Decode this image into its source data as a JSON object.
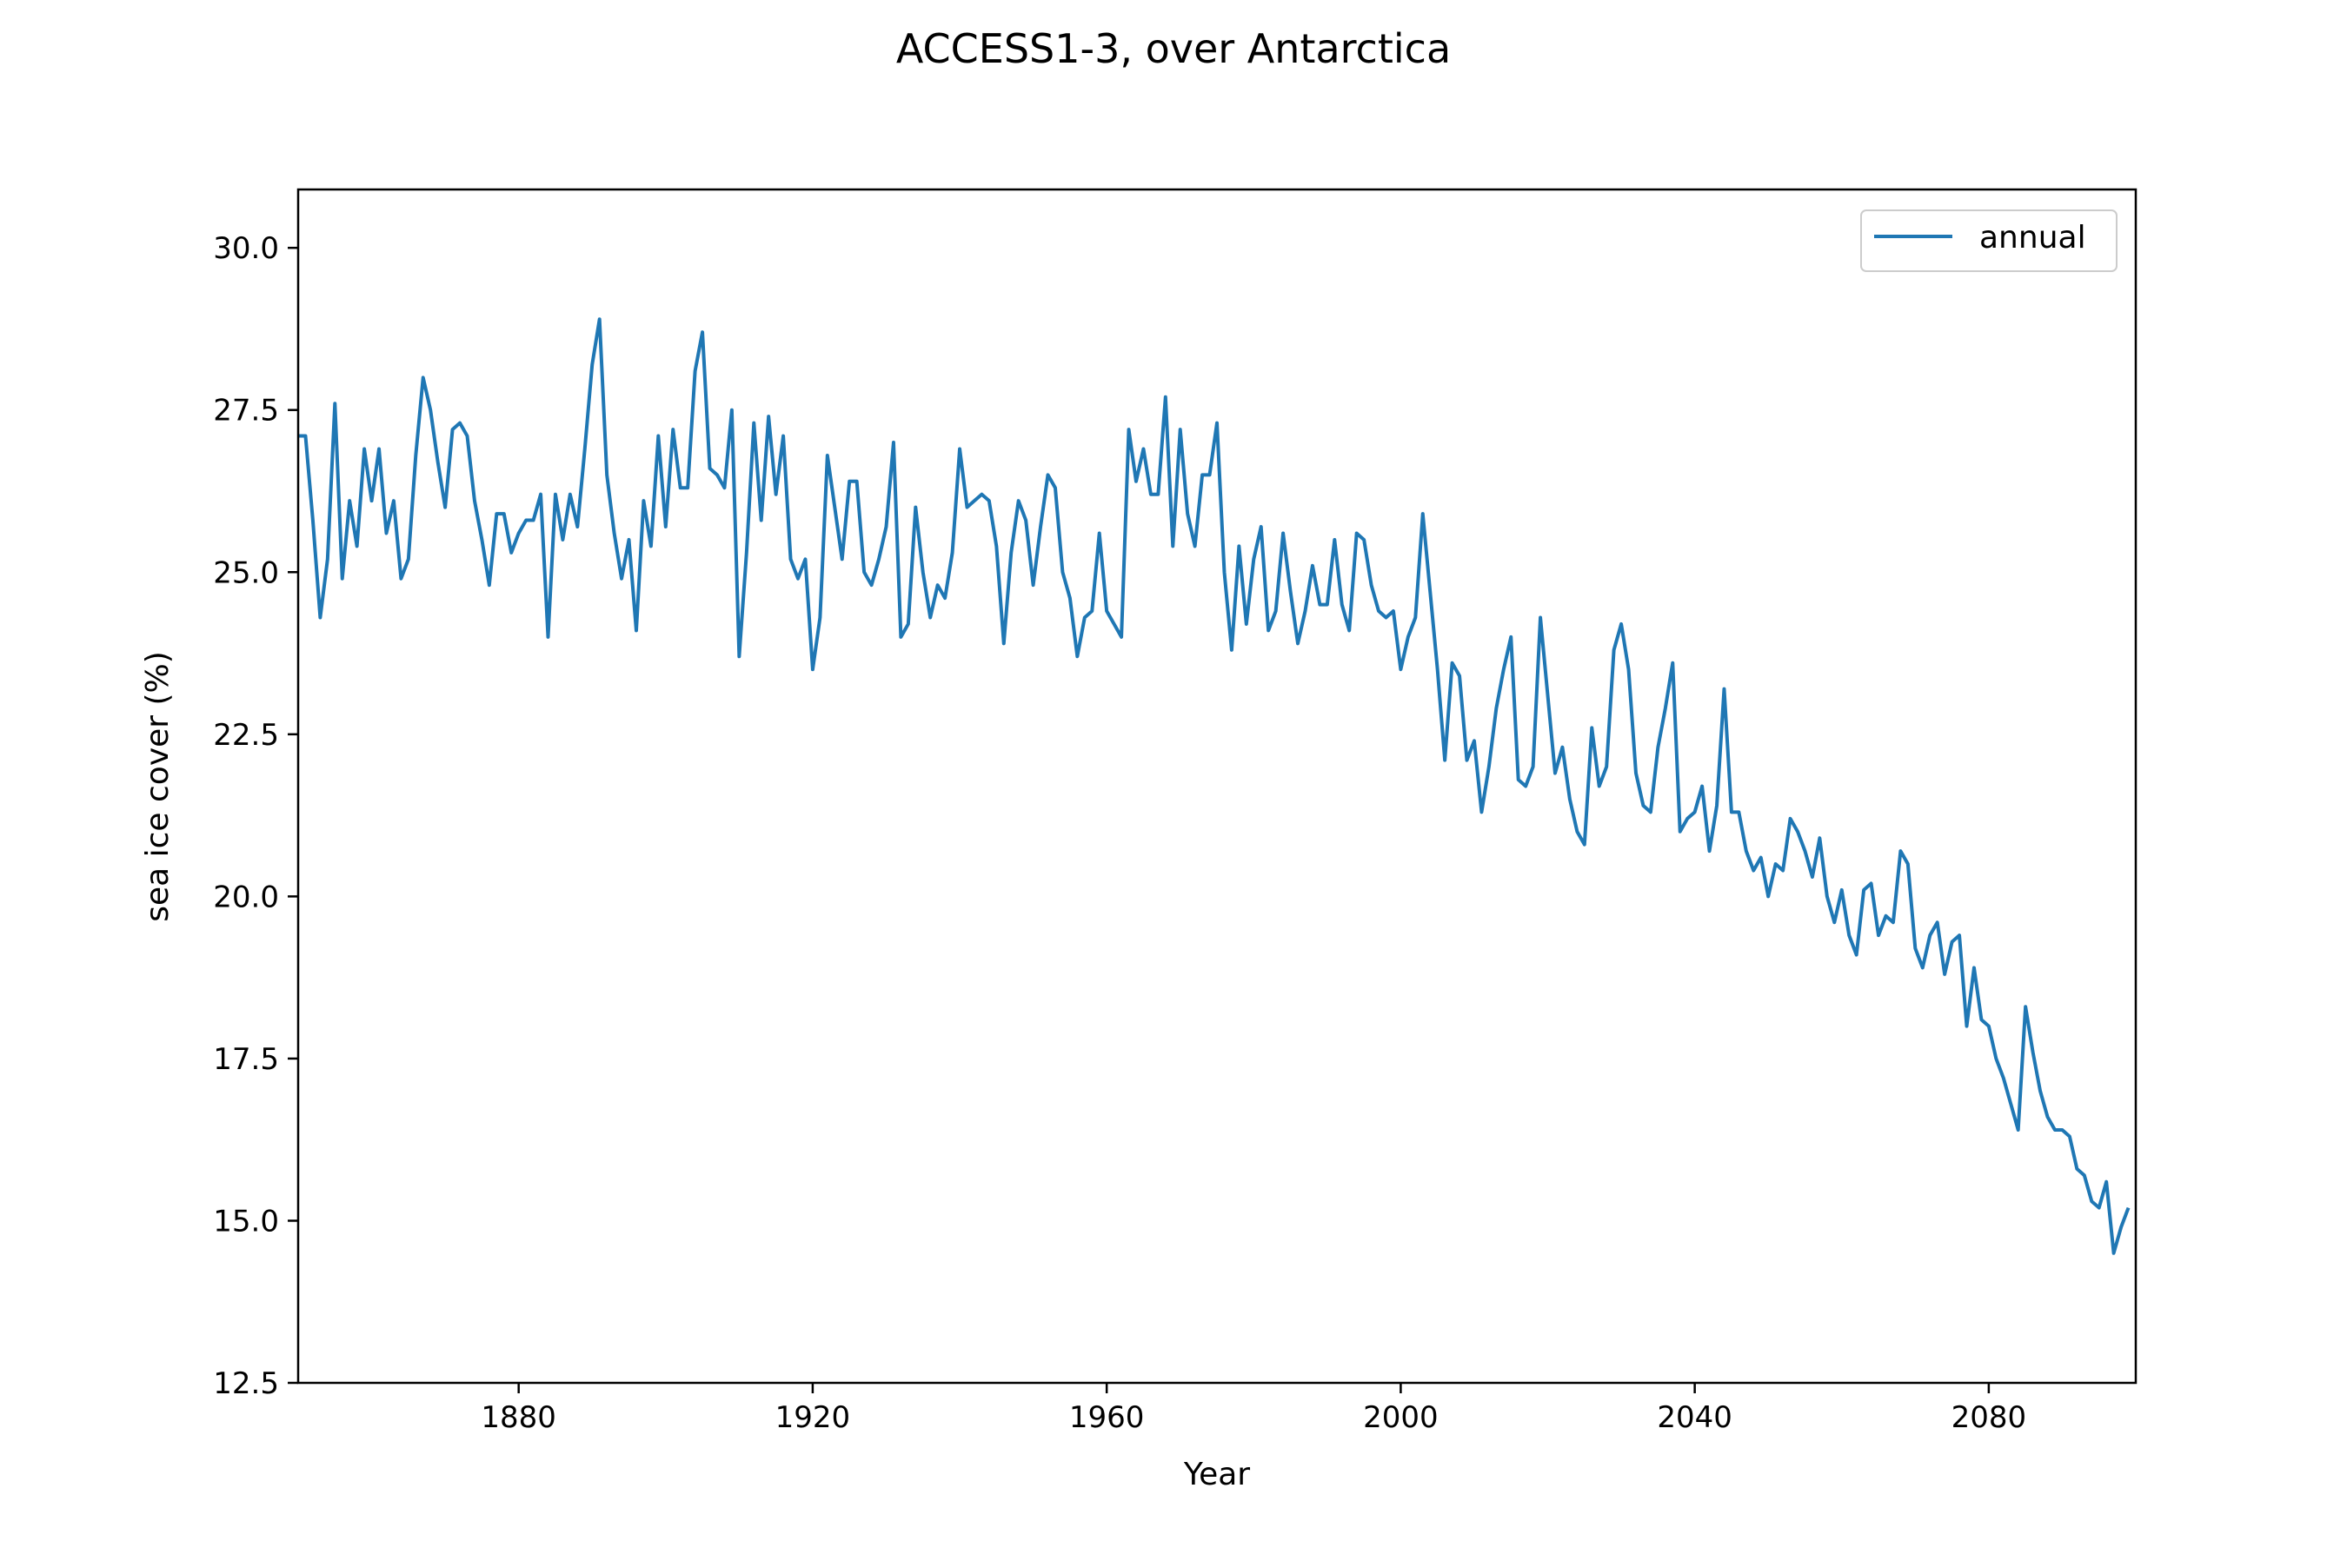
{
  "chart_data": {
    "type": "line",
    "title": "ACCESS1-3, over Antarctica",
    "xlabel": "Year",
    "ylabel": "sea ice cover (%)",
    "xlim": [
      1850,
      2100
    ],
    "ylim": [
      12.5,
      30.9
    ],
    "xticks": [
      1880,
      1920,
      1960,
      2000,
      2040,
      2080
    ],
    "yticks": [
      12.5,
      15.0,
      17.5,
      20.0,
      22.5,
      25.0,
      27.5,
      30.0
    ],
    "grid": false,
    "legend_position": "top-right",
    "colors": {
      "series": "#1f77b4",
      "axes": "#000000"
    },
    "series": [
      {
        "name": "annual",
        "start_year": 1850,
        "values": [
          27.1,
          27.1,
          25.8,
          24.3,
          25.2,
          27.6,
          24.9,
          26.1,
          25.4,
          26.9,
          26.1,
          26.9,
          25.6,
          26.1,
          24.9,
          25.2,
          26.8,
          28.0,
          27.5,
          26.7,
          26.0,
          27.2,
          27.3,
          27.1,
          26.1,
          25.5,
          24.8,
          25.9,
          25.9,
          25.3,
          25.6,
          25.8,
          25.8,
          26.2,
          24.0,
          26.2,
          25.5,
          26.2,
          25.7,
          26.9,
          28.2,
          28.9,
          26.5,
          25.6,
          24.9,
          25.5,
          24.1,
          26.1,
          25.4,
          27.1,
          25.7,
          27.2,
          26.3,
          26.3,
          28.1,
          28.7,
          26.6,
          26.5,
          26.3,
          27.5,
          23.7,
          25.3,
          27.3,
          25.8,
          27.4,
          26.2,
          27.1,
          25.2,
          24.9,
          25.2,
          23.5,
          24.3,
          26.8,
          26.0,
          25.2,
          26.4,
          26.4,
          25.0,
          24.8,
          25.2,
          25.7,
          27.0,
          24.0,
          24.2,
          26.0,
          25.0,
          24.3,
          24.8,
          24.6,
          25.3,
          26.9,
          26.0,
          26.1,
          26.2,
          26.1,
          25.4,
          23.9,
          25.3,
          26.1,
          25.8,
          24.8,
          25.7,
          26.5,
          26.3,
          25.0,
          24.6,
          23.7,
          24.3,
          24.4,
          25.6,
          24.4,
          24.2,
          24.0,
          27.2,
          26.4,
          26.9,
          26.2,
          26.2,
          27.7,
          25.4,
          27.2,
          25.9,
          25.4,
          26.5,
          26.5,
          27.3,
          25.0,
          23.8,
          25.4,
          24.2,
          25.2,
          25.7,
          24.1,
          24.4,
          25.6,
          24.7,
          23.9,
          24.4,
          25.1,
          24.5,
          24.5,
          25.5,
          24.5,
          24.1,
          25.6,
          25.5,
          24.8,
          24.4,
          24.3,
          24.4,
          23.5,
          24.0,
          24.3,
          25.9,
          24.7,
          23.5,
          22.1,
          23.6,
          23.4,
          22.1,
          22.4,
          21.3,
          22.0,
          22.9,
          23.5,
          24.0,
          21.8,
          21.7,
          22.0,
          24.3,
          23.1,
          21.9,
          22.3,
          21.5,
          21.0,
          20.8,
          22.6,
          21.7,
          22.0,
          23.8,
          24.2,
          23.5,
          21.9,
          21.4,
          21.3,
          22.3,
          22.9,
          23.6,
          21.0,
          21.2,
          21.3,
          21.7,
          20.7,
          21.4,
          23.2,
          21.3,
          21.3,
          20.7,
          20.4,
          20.6,
          20.0,
          20.5,
          20.4,
          21.2,
          21.0,
          20.7,
          20.3,
          20.9,
          20.0,
          19.6,
          20.1,
          19.4,
          19.1,
          20.1,
          20.2,
          19.4,
          19.7,
          19.6,
          20.7,
          20.5,
          19.2,
          18.9,
          19.4,
          19.6,
          18.8,
          19.3,
          19.4,
          18.0,
          18.9,
          18.1,
          18.0,
          17.5,
          17.2,
          16.8,
          16.4,
          18.3,
          17.6,
          17.0,
          16.6,
          16.4,
          16.4,
          16.3,
          15.8,
          15.7,
          15.3,
          15.2,
          15.6,
          14.5,
          14.9,
          15.2
        ]
      }
    ]
  }
}
